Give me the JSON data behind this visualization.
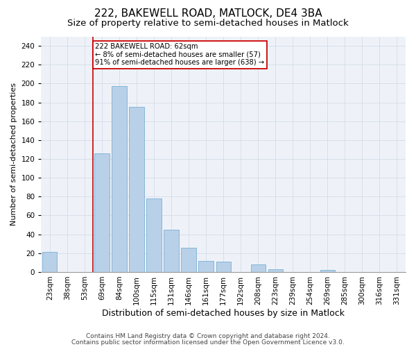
{
  "title1": "222, BAKEWELL ROAD, MATLOCK, DE4 3BA",
  "title2": "Size of property relative to semi-detached houses in Matlock",
  "xlabel": "Distribution of semi-detached houses by size in Matlock",
  "ylabel": "Number of semi-detached properties",
  "categories": [
    "23sqm",
    "38sqm",
    "53sqm",
    "69sqm",
    "84sqm",
    "100sqm",
    "115sqm",
    "131sqm",
    "146sqm",
    "161sqm",
    "177sqm",
    "192sqm",
    "208sqm",
    "223sqm",
    "239sqm",
    "254sqm",
    "269sqm",
    "285sqm",
    "300sqm",
    "316sqm",
    "331sqm"
  ],
  "values": [
    21,
    0,
    0,
    126,
    197,
    175,
    78,
    45,
    26,
    12,
    11,
    0,
    8,
    3,
    0,
    0,
    2,
    0,
    0,
    0,
    0
  ],
  "bar_color": "#b8d0e8",
  "bar_edge_color": "#7aafd4",
  "bar_width": 0.85,
  "red_line_index": 3,
  "annotation_text": "222 BAKEWELL ROAD: 62sqm\n← 8% of semi-detached houses are smaller (57)\n91% of semi-detached houses are larger (638) →",
  "annotation_box_color": "#ffffff",
  "annotation_box_edge": "#cc0000",
  "ylim": [
    0,
    250
  ],
  "yticks": [
    0,
    20,
    40,
    60,
    80,
    100,
    120,
    140,
    160,
    180,
    200,
    220,
    240
  ],
  "grid_color": "#d4dce8",
  "background_color": "#eef2f8",
  "footer1": "Contains HM Land Registry data © Crown copyright and database right 2024.",
  "footer2": "Contains public sector information licensed under the Open Government Licence v3.0.",
  "title1_fontsize": 11,
  "title2_fontsize": 9.5,
  "xlabel_fontsize": 9,
  "ylabel_fontsize": 8,
  "tick_fontsize": 7.5,
  "footer_fontsize": 6.5
}
